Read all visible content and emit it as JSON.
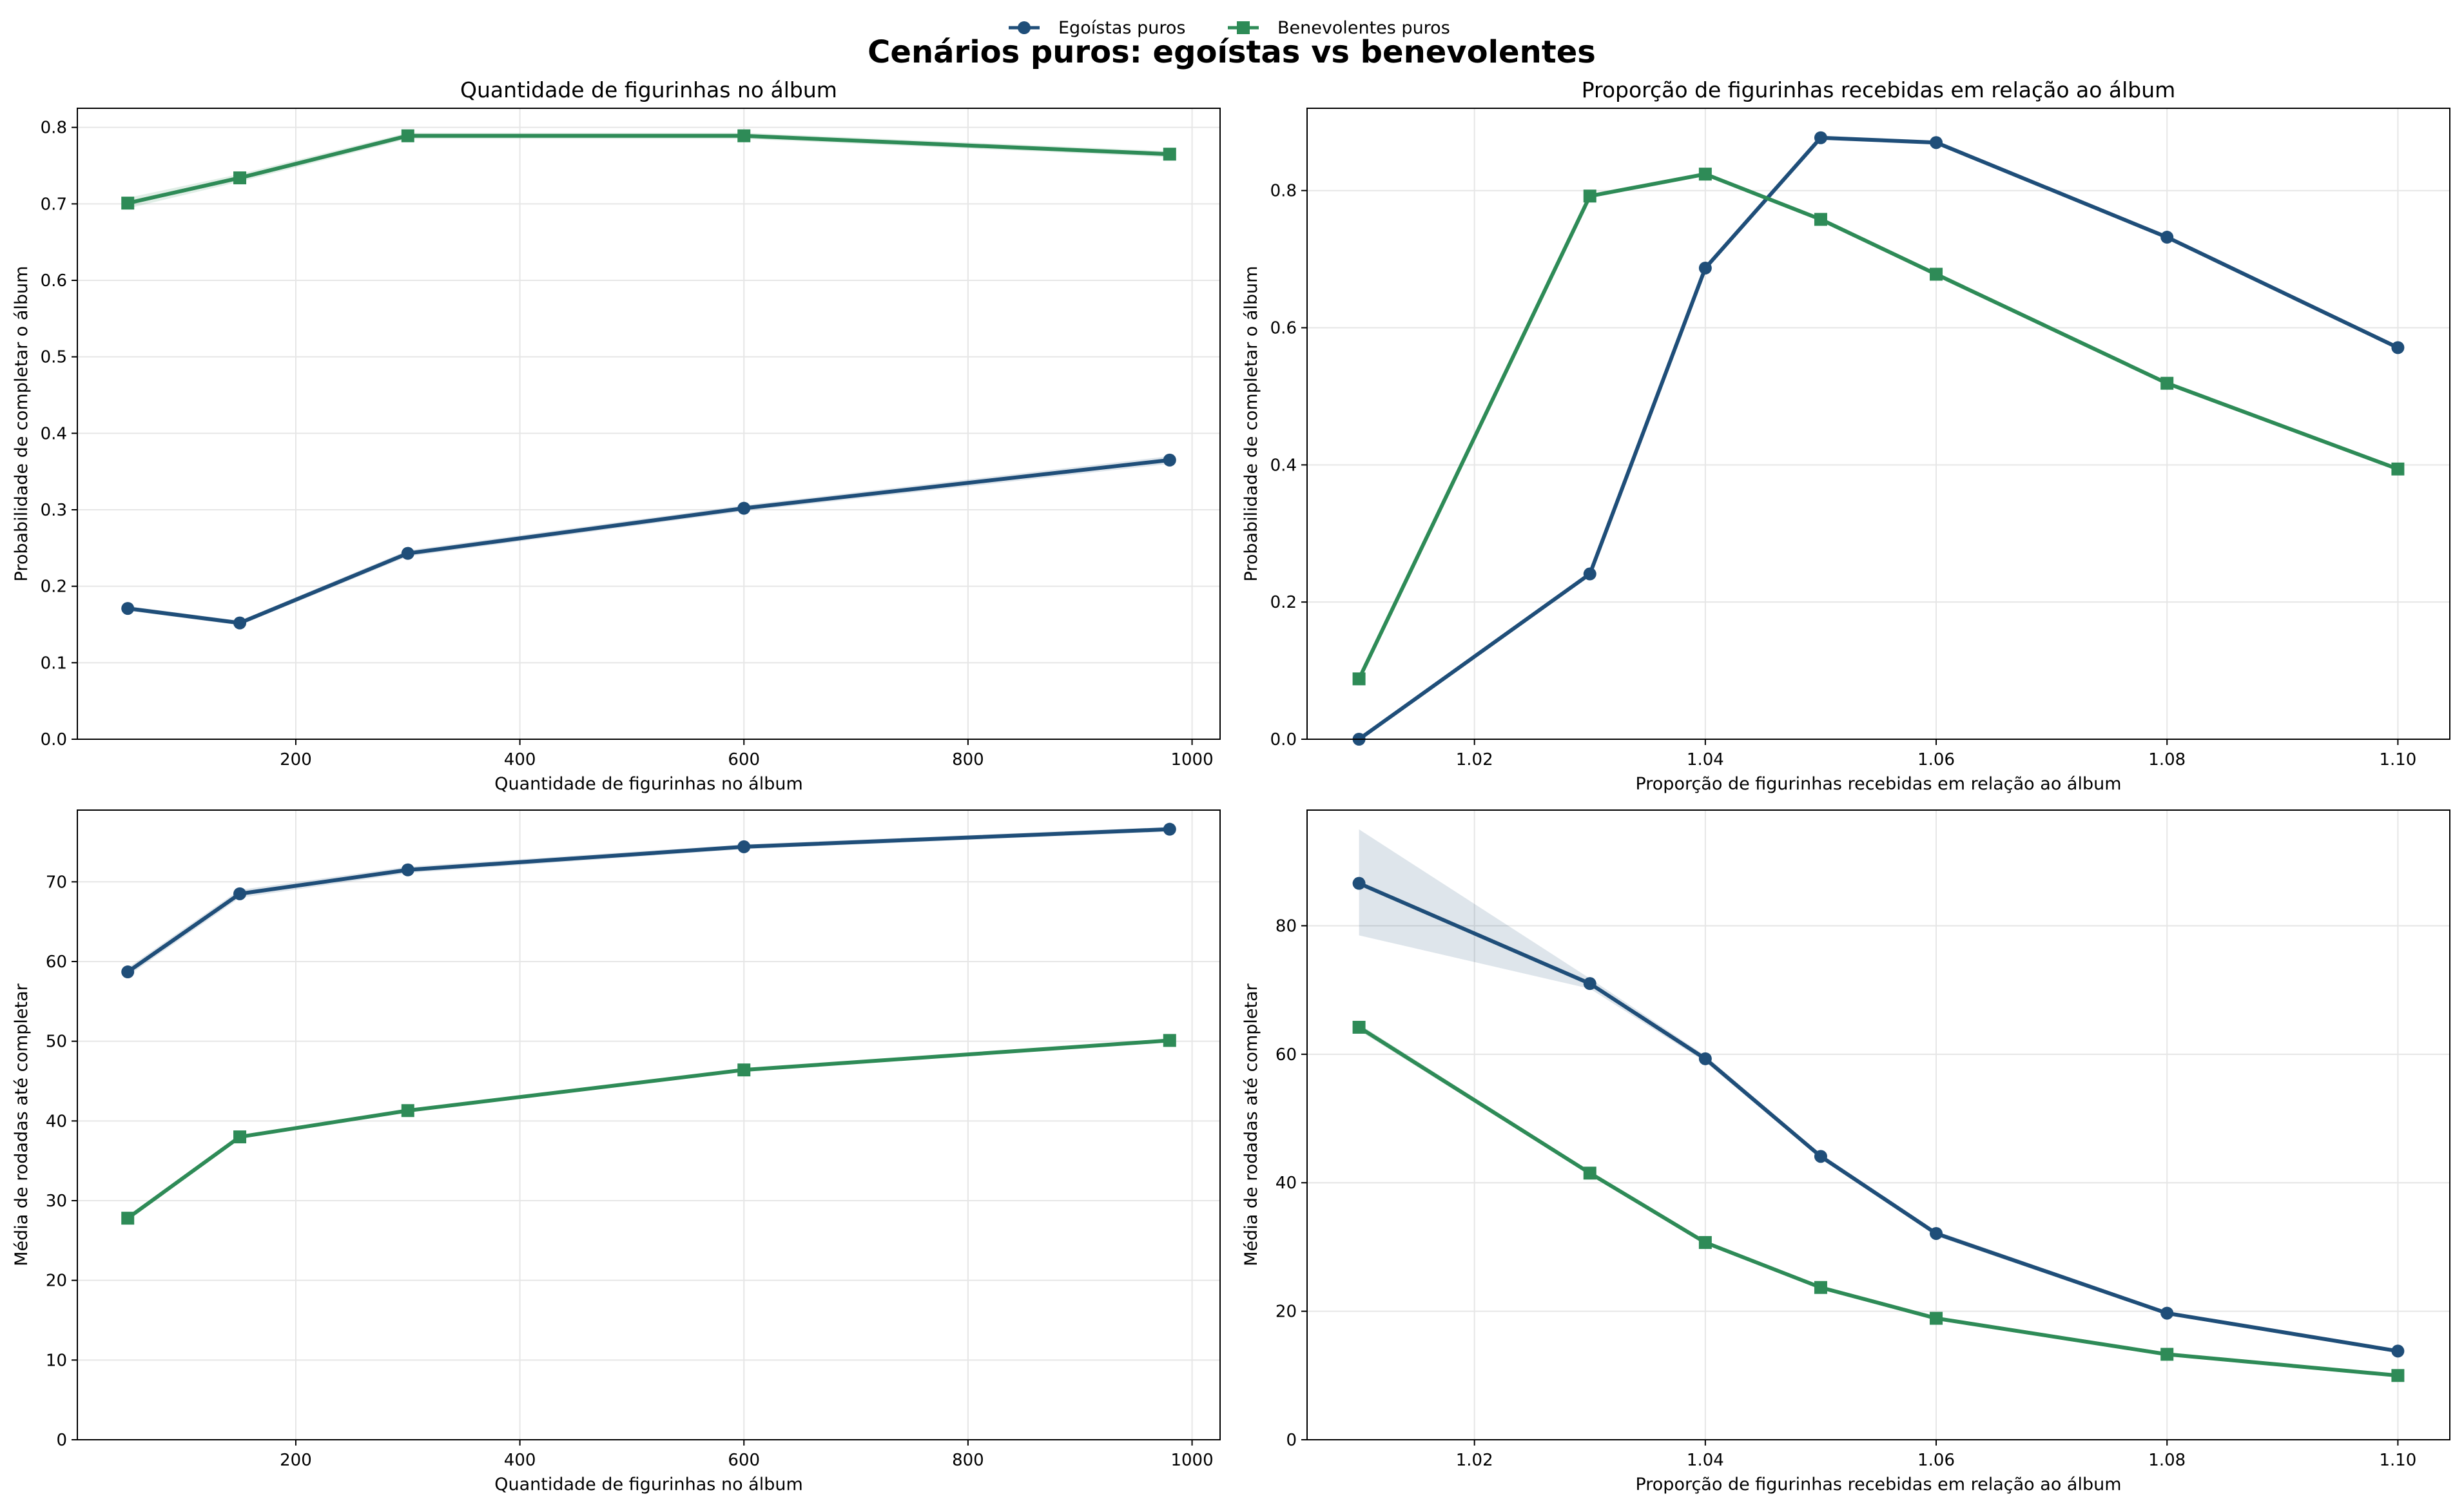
{
  "figure": {
    "suptitle": "Cenários puros: egoístas vs benevolentes"
  },
  "legend": {
    "placement": "top-center",
    "items": [
      {
        "label": "Egoístas puros",
        "color": "#1f4e79",
        "marker": "circle"
      },
      {
        "label": "Benevolentes puros",
        "color": "#2e8b57",
        "marker": "square"
      }
    ]
  },
  "colors": {
    "egoistas": "#1f4e79",
    "benevolentes": "#2e8b57"
  },
  "chart_data": [
    {
      "type": "line",
      "title": "Quantidade de figurinhas no álbum",
      "xlabel": "Quantidade de figurinhas no álbum",
      "ylabel": "Probabilidade de completar o álbum",
      "xlim": [
        5,
        1025
      ],
      "ylim": [
        0,
        0.825
      ],
      "xticks": [
        200,
        400,
        600,
        800,
        1000
      ],
      "yticks": [
        0.0,
        0.1,
        0.2,
        0.3,
        0.4,
        0.5,
        0.6,
        0.7,
        0.8
      ],
      "ytick_decimals": 1,
      "grid": true,
      "x": [
        50,
        150,
        300,
        600,
        980
      ],
      "series": [
        {
          "name": "Egoístas puros",
          "color": "#1f4e79",
          "marker": "circle",
          "values": [
            0.171,
            0.152,
            0.243,
            0.302,
            0.365
          ],
          "lower": [
            0.168,
            0.149,
            0.239,
            0.298,
            0.36
          ],
          "upper": [
            0.174,
            0.155,
            0.247,
            0.306,
            0.37
          ]
        },
        {
          "name": "Benevolentes puros",
          "color": "#2e8b57",
          "marker": "square",
          "values": [
            0.701,
            0.734,
            0.789,
            0.789,
            0.765
          ],
          "lower": [
            0.694,
            0.729,
            0.785,
            0.785,
            0.761
          ],
          "upper": [
            0.708,
            0.739,
            0.793,
            0.793,
            0.769
          ]
        }
      ]
    },
    {
      "type": "line",
      "title": "Proporção de figurinhas recebidas em relação ao álbum",
      "xlabel": "Proporção de figurinhas recebidas em relação ao álbum",
      "ylabel": "Probabilidade de completar o álbum",
      "xlim": [
        1.0055,
        1.1045
      ],
      "ylim": [
        0,
        0.92
      ],
      "xticks": [
        1.02,
        1.04,
        1.06,
        1.08,
        1.1
      ],
      "yticks": [
        0.0,
        0.2,
        0.4,
        0.6,
        0.8
      ],
      "xtick_decimals": 2,
      "ytick_decimals": 1,
      "grid": true,
      "x": [
        1.01,
        1.03,
        1.04,
        1.05,
        1.06,
        1.08,
        1.1
      ],
      "series": [
        {
          "name": "Egoístas puros",
          "color": "#1f4e79",
          "marker": "circle",
          "values": [
            0.0,
            0.241,
            0.687,
            0.877,
            0.87,
            0.732,
            0.571
          ],
          "lower": [
            0.0,
            0.238,
            0.683,
            0.874,
            0.867,
            0.729,
            0.568
          ],
          "upper": [
            0.0,
            0.244,
            0.691,
            0.88,
            0.873,
            0.735,
            0.574
          ]
        },
        {
          "name": "Benevolentes puros",
          "color": "#2e8b57",
          "marker": "square",
          "values": [
            0.088,
            0.792,
            0.824,
            0.758,
            0.678,
            0.519,
            0.394
          ],
          "lower": [
            0.085,
            0.789,
            0.821,
            0.755,
            0.675,
            0.516,
            0.391
          ],
          "upper": [
            0.091,
            0.795,
            0.827,
            0.761,
            0.681,
            0.522,
            0.397
          ]
        }
      ]
    },
    {
      "type": "line",
      "title": "",
      "xlabel": "Quantidade de figurinhas no álbum",
      "ylabel": "Média de rodadas até completar",
      "xlim": [
        5,
        1025
      ],
      "ylim": [
        0,
        79
      ],
      "xticks": [
        200,
        400,
        600,
        800,
        1000
      ],
      "yticks": [
        0,
        10,
        20,
        30,
        40,
        50,
        60,
        70
      ],
      "ytick_decimals": 0,
      "grid": true,
      "x": [
        50,
        150,
        300,
        600,
        980
      ],
      "series": [
        {
          "name": "Egoístas puros",
          "color": "#1f4e79",
          "marker": "circle",
          "values": [
            58.7,
            68.5,
            71.5,
            74.4,
            76.6
          ],
          "lower": [
            58.2,
            68.0,
            71.1,
            74.1,
            76.3
          ],
          "upper": [
            59.2,
            69.0,
            71.9,
            74.7,
            76.9
          ]
        },
        {
          "name": "Benevolentes puros",
          "color": "#2e8b57",
          "marker": "square",
          "values": [
            27.8,
            38.0,
            41.3,
            46.4,
            50.1
          ],
          "lower": [
            27.6,
            37.8,
            41.1,
            46.2,
            49.9
          ],
          "upper": [
            28.0,
            38.2,
            41.5,
            46.6,
            50.3
          ]
        }
      ]
    },
    {
      "type": "line",
      "title": "",
      "xlabel": "Proporção de figurinhas recebidas em relação ao álbum",
      "ylabel": "Média de rodadas até completar",
      "xlim": [
        1.0055,
        1.1045
      ],
      "ylim": [
        0,
        98
      ],
      "xticks": [
        1.02,
        1.04,
        1.06,
        1.08,
        1.1
      ],
      "yticks": [
        0,
        20,
        40,
        60,
        80
      ],
      "xtick_decimals": 2,
      "ytick_decimals": 0,
      "grid": true,
      "x": [
        1.01,
        1.03,
        1.04,
        1.05,
        1.06,
        1.08,
        1.1
      ],
      "series": [
        {
          "name": "Egoístas puros",
          "color": "#1f4e79",
          "marker": "circle",
          "values": [
            86.6,
            71.0,
            59.3,
            44.1,
            32.1,
            19.7,
            13.8
          ],
          "lower": [
            78.5,
            70.2,
            58.8,
            43.7,
            31.7,
            19.4,
            13.5
          ],
          "upper": [
            95.0,
            71.8,
            59.8,
            44.5,
            32.5,
            20.0,
            14.1
          ]
        },
        {
          "name": "Benevolentes puros",
          "color": "#2e8b57",
          "marker": "square",
          "values": [
            64.2,
            41.5,
            30.7,
            23.7,
            18.9,
            13.3,
            10.0
          ],
          "lower": [
            63.7,
            41.2,
            30.4,
            23.4,
            18.6,
            13.0,
            9.7
          ],
          "upper": [
            64.7,
            41.8,
            31.0,
            24.0,
            19.2,
            13.6,
            10.3
          ]
        }
      ]
    }
  ]
}
